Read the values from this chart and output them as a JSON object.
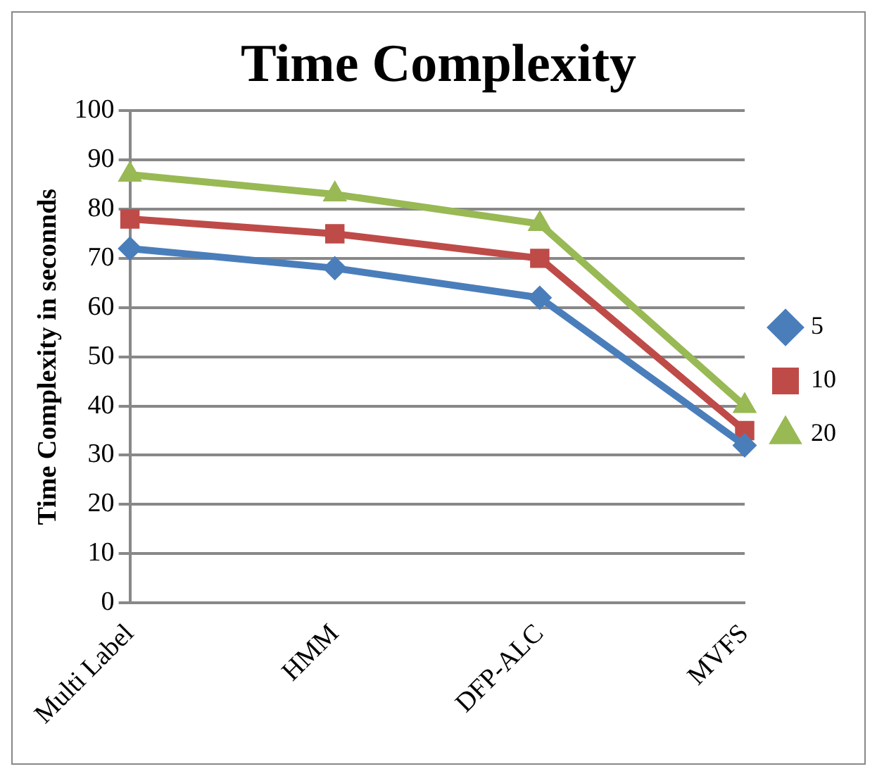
{
  "chart_data": {
    "type": "line",
    "title": "Time Complexity",
    "ylabel": "Time Complexity in seconnds",
    "categories": [
      "Multi Label",
      "HMM",
      "DFP-ALC",
      "MVFS"
    ],
    "series": [
      {
        "name": "5",
        "color": "#4a7ebb",
        "marker": "diamond",
        "values": [
          72,
          68,
          62,
          32
        ]
      },
      {
        "name": "10",
        "color": "#be4b48",
        "marker": "square",
        "values": [
          78,
          75,
          70,
          35
        ]
      },
      {
        "name": "20",
        "color": "#98b954",
        "marker": "triangle",
        "values": [
          87,
          83,
          77,
          40
        ]
      }
    ],
    "ylim": [
      0,
      100
    ],
    "yticks": [
      0,
      10,
      20,
      30,
      40,
      50,
      60,
      70,
      80,
      90,
      100
    ],
    "grid": "y",
    "legend": "right"
  }
}
